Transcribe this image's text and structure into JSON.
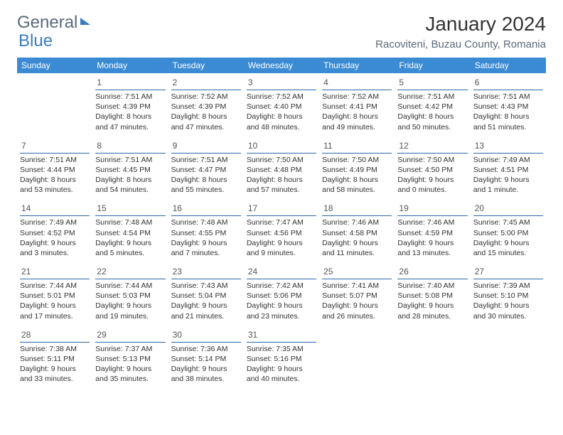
{
  "brand": {
    "part1": "General",
    "part2": "Blue"
  },
  "title": "January 2024",
  "location": "Racoviteni, Buzau County, Romania",
  "weekdays": [
    "Sunday",
    "Monday",
    "Tuesday",
    "Wednesday",
    "Thursday",
    "Friday",
    "Saturday"
  ],
  "colors": {
    "header_bg": "#3b8bd4",
    "header_text": "#ffffff",
    "rule": "#2a6aa8",
    "logo_gray": "#5a6a7a",
    "logo_blue": "#3b7bbf"
  },
  "firstWeekdayIndex": 1,
  "daysInMonth": 31,
  "days": [
    {
      "n": 1,
      "sunrise": "7:51 AM",
      "sunset": "4:39 PM",
      "daylight": "8 hours and 47 minutes."
    },
    {
      "n": 2,
      "sunrise": "7:52 AM",
      "sunset": "4:39 PM",
      "daylight": "8 hours and 47 minutes."
    },
    {
      "n": 3,
      "sunrise": "7:52 AM",
      "sunset": "4:40 PM",
      "daylight": "8 hours and 48 minutes."
    },
    {
      "n": 4,
      "sunrise": "7:52 AM",
      "sunset": "4:41 PM",
      "daylight": "8 hours and 49 minutes."
    },
    {
      "n": 5,
      "sunrise": "7:51 AM",
      "sunset": "4:42 PM",
      "daylight": "8 hours and 50 minutes."
    },
    {
      "n": 6,
      "sunrise": "7:51 AM",
      "sunset": "4:43 PM",
      "daylight": "8 hours and 51 minutes."
    },
    {
      "n": 7,
      "sunrise": "7:51 AM",
      "sunset": "4:44 PM",
      "daylight": "8 hours and 53 minutes."
    },
    {
      "n": 8,
      "sunrise": "7:51 AM",
      "sunset": "4:45 PM",
      "daylight": "8 hours and 54 minutes."
    },
    {
      "n": 9,
      "sunrise": "7:51 AM",
      "sunset": "4:47 PM",
      "daylight": "8 hours and 55 minutes."
    },
    {
      "n": 10,
      "sunrise": "7:50 AM",
      "sunset": "4:48 PM",
      "daylight": "8 hours and 57 minutes."
    },
    {
      "n": 11,
      "sunrise": "7:50 AM",
      "sunset": "4:49 PM",
      "daylight": "8 hours and 58 minutes."
    },
    {
      "n": 12,
      "sunrise": "7:50 AM",
      "sunset": "4:50 PM",
      "daylight": "9 hours and 0 minutes."
    },
    {
      "n": 13,
      "sunrise": "7:49 AM",
      "sunset": "4:51 PM",
      "daylight": "9 hours and 1 minute."
    },
    {
      "n": 14,
      "sunrise": "7:49 AM",
      "sunset": "4:52 PM",
      "daylight": "9 hours and 3 minutes."
    },
    {
      "n": 15,
      "sunrise": "7:48 AM",
      "sunset": "4:54 PM",
      "daylight": "9 hours and 5 minutes."
    },
    {
      "n": 16,
      "sunrise": "7:48 AM",
      "sunset": "4:55 PM",
      "daylight": "9 hours and 7 minutes."
    },
    {
      "n": 17,
      "sunrise": "7:47 AM",
      "sunset": "4:56 PM",
      "daylight": "9 hours and 9 minutes."
    },
    {
      "n": 18,
      "sunrise": "7:46 AM",
      "sunset": "4:58 PM",
      "daylight": "9 hours and 11 minutes."
    },
    {
      "n": 19,
      "sunrise": "7:46 AM",
      "sunset": "4:59 PM",
      "daylight": "9 hours and 13 minutes."
    },
    {
      "n": 20,
      "sunrise": "7:45 AM",
      "sunset": "5:00 PM",
      "daylight": "9 hours and 15 minutes."
    },
    {
      "n": 21,
      "sunrise": "7:44 AM",
      "sunset": "5:01 PM",
      "daylight": "9 hours and 17 minutes."
    },
    {
      "n": 22,
      "sunrise": "7:44 AM",
      "sunset": "5:03 PM",
      "daylight": "9 hours and 19 minutes."
    },
    {
      "n": 23,
      "sunrise": "7:43 AM",
      "sunset": "5:04 PM",
      "daylight": "9 hours and 21 minutes."
    },
    {
      "n": 24,
      "sunrise": "7:42 AM",
      "sunset": "5:06 PM",
      "daylight": "9 hours and 23 minutes."
    },
    {
      "n": 25,
      "sunrise": "7:41 AM",
      "sunset": "5:07 PM",
      "daylight": "9 hours and 26 minutes."
    },
    {
      "n": 26,
      "sunrise": "7:40 AM",
      "sunset": "5:08 PM",
      "daylight": "9 hours and 28 minutes."
    },
    {
      "n": 27,
      "sunrise": "7:39 AM",
      "sunset": "5:10 PM",
      "daylight": "9 hours and 30 minutes."
    },
    {
      "n": 28,
      "sunrise": "7:38 AM",
      "sunset": "5:11 PM",
      "daylight": "9 hours and 33 minutes."
    },
    {
      "n": 29,
      "sunrise": "7:37 AM",
      "sunset": "5:13 PM",
      "daylight": "9 hours and 35 minutes."
    },
    {
      "n": 30,
      "sunrise": "7:36 AM",
      "sunset": "5:14 PM",
      "daylight": "9 hours and 38 minutes."
    },
    {
      "n": 31,
      "sunrise": "7:35 AM",
      "sunset": "5:16 PM",
      "daylight": "9 hours and 40 minutes."
    }
  ],
  "labels": {
    "sunrise": "Sunrise:",
    "sunset": "Sunset:",
    "daylight": "Daylight:"
  }
}
